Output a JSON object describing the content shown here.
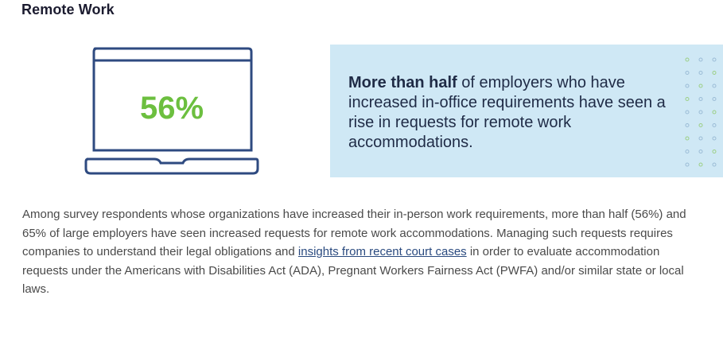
{
  "header": {
    "title": "Remote Work"
  },
  "stat": {
    "value": "56%",
    "icon": "laptop-icon",
    "value_color": "#6cbf3f",
    "frame_color": "#2e4a80"
  },
  "callout": {
    "background": "#cfe8f5",
    "highlight": "More than half",
    "text_rest": " of employers who have increased in-office requirements have seen a rise in requests for remote work accommodations."
  },
  "body": {
    "text_before_link": "Among survey respondents whose organizations have increased their in-person work requirements, more than half (56%) and 65% of large employers have seen increased requests for remote work accommodations. Managing such requests requires companies to understand their legal obligations and ",
    "link_text": "insights from recent court cases",
    "text_after_link": " in order to evaluate accommodation requests under the Americans with Disabilities Act (ADA), Pregnant Workers Fairness Act (PWFA) and/or similar state or local laws."
  }
}
